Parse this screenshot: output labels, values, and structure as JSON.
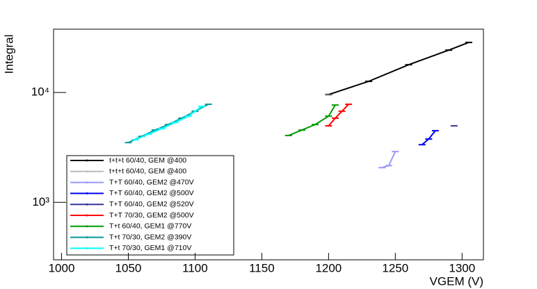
{
  "chart_data": {
    "type": "line",
    "x_label": "VGEM (V)",
    "y_label": "Integral",
    "log_y": true,
    "xlim": [
      994,
      1316
    ],
    "ylim": [
      300,
      37700
    ],
    "xticks": [
      1000,
      1050,
      1100,
      1150,
      1200,
      1250,
      1300
    ],
    "yticks": [
      {
        "value": 1000,
        "label": "10³"
      },
      {
        "value": 10000,
        "label": "10⁴"
      }
    ],
    "legend": "bottom-left",
    "series": [
      {
        "name": "t+t+t 60/40, GEM @400",
        "color": "#000000",
        "x": [
          1200,
          1230,
          1260,
          1290,
          1305
        ],
        "values": [
          9570,
          12630,
          17900,
          24300,
          28550
        ]
      },
      {
        "name": "t+t+t 60/40, GEM @400",
        "color": "#bbbbbb",
        "x": [
          1200
        ],
        "values": [
          9430
        ]
      },
      {
        "name": "T+T 60/40, GEM2 @470V",
        "color": "#9999ff",
        "x": [
          1240,
          1245,
          1250
        ],
        "values": [
          2070,
          2160,
          2900
        ]
      },
      {
        "name": "T+T 60/40, GEM2 @500V",
        "color": "#0000ee",
        "x": [
          1270,
          1275,
          1280
        ],
        "values": [
          3350,
          3770,
          4490
        ]
      },
      {
        "name": "T+T 60/40, GEM2 @520V",
        "color": "#333399",
        "x": [
          1294
        ],
        "values": [
          4970
        ]
      },
      {
        "name": "T+T 70/30, GEM2 @500V",
        "color": "#ff0000",
        "x": [
          1200,
          1205,
          1210,
          1215
        ],
        "values": [
          4970,
          5840,
          6750,
          7810
        ]
      },
      {
        "name": "T+t 60/40, GEM1 @770V",
        "color": "#009900",
        "x": [
          1170,
          1180,
          1190,
          1200,
          1205
        ],
        "values": [
          4060,
          4550,
          5110,
          6090,
          7690
        ]
      },
      {
        "name": "T+t 70/30, GEM2 @390V",
        "color": "#009999",
        "x": [
          1050,
          1060,
          1070,
          1080,
          1090,
          1100,
          1110
        ],
        "values": [
          3500,
          3990,
          4550,
          5110,
          5840,
          6750,
          7810
        ]
      },
      {
        "name": "T+t 70/30, GEM1 @710V",
        "color": "#00ffff",
        "x": [
          1055,
          1065,
          1075,
          1085,
          1095,
          1105
        ],
        "values": [
          3710,
          4170,
          4690,
          5340,
          6090,
          7470
        ]
      }
    ]
  }
}
